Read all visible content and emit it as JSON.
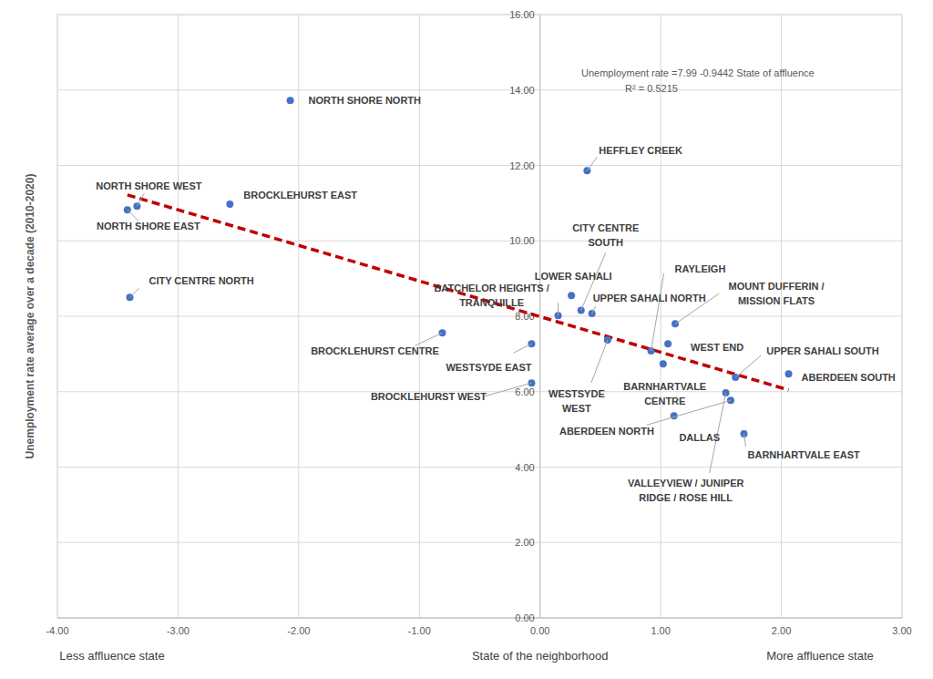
{
  "chart_data": {
    "type": "scatter",
    "y_label": "Unemployment rate average over a decade (2010-2020)",
    "x_label": "State of the neighborhood",
    "x_label_left": "Less affluence state",
    "x_label_right": "More affluence state",
    "annotations": [
      "Unemployment rate =7.99 -0.9442 State of affluence",
      "R² = 0.5215"
    ],
    "labels": [
      "NORTH SHORE NORTH",
      "HEFFLEY CREEK",
      "NORTH SHORE WEST",
      "NORTH SHORE EAST",
      "BROCKLEHURST EAST",
      "CITY CENTRE NORTH",
      "BROCKLEHURST CENTRE",
      "WESTSYDE EAST",
      "BROCKLEHURST WEST",
      "BATCHELOR HEIGHTS / TRANQUILLE",
      "LOWER SAHALI",
      "CITY CENTRE SOUTH",
      "UPPER SAHALI NORTH",
      "WESTSYDE WEST",
      "RAYLEIGH",
      "WEST END",
      "MOUNT DUFFERIN / MISSION FLATS",
      "BARNHARTVALE CENTRE",
      "UPPER SAHALI SOUTH",
      "ABERDEEN SOUTH",
      "VALLEYVIEW / JUNIPER RIDGE / ROSE HILL",
      "ABERDEEN NORTH",
      "DALLAS",
      "BARNHARTVALE EAST"
    ],
    "x": [
      -2.07,
      0.39,
      -3.34,
      -3.42,
      -2.57,
      -3.4,
      -0.81,
      -0.07,
      -0.07,
      0.15,
      0.26,
      0.34,
      0.43,
      0.56,
      0.92,
      1.06,
      1.12,
      1.02,
      1.62,
      2.06,
      1.54,
      1.58,
      1.11,
      1.69
    ],
    "values": [
      13.72,
      11.86,
      10.92,
      10.82,
      10.97,
      8.5,
      7.56,
      7.27,
      6.23,
      8.02,
      8.55,
      8.16,
      8.07,
      7.37,
      7.08,
      7.27,
      7.8,
      6.74,
      6.38,
      6.47,
      5.97,
      5.77,
      5.36,
      4.88
    ],
    "color": "#4472c4",
    "marker": "circle",
    "trendline": {
      "intercept": 7.99,
      "slope": -0.9442,
      "color": "#c00000",
      "line_style": "dashed"
    },
    "xlim": [
      -4,
      3
    ],
    "ylim": [
      0,
      16
    ],
    "xticks": [
      {
        "value": -4,
        "label": "-4.00"
      },
      {
        "value": -3,
        "label": "-3.00"
      },
      {
        "value": -2,
        "label": "-2.00"
      },
      {
        "value": -1,
        "label": "-1.00"
      },
      {
        "value": 0,
        "label": "0.00"
      },
      {
        "value": 1,
        "label": "1.00"
      },
      {
        "value": 2,
        "label": "2.00"
      },
      {
        "value": 3,
        "label": "3.00"
      }
    ],
    "yticks": [
      {
        "value": 0,
        "label": "0.00"
      },
      {
        "value": 2,
        "label": "2.00"
      },
      {
        "value": 4,
        "label": "4.00"
      },
      {
        "value": 6,
        "label": "6.00"
      },
      {
        "value": 8,
        "label": "8.00"
      },
      {
        "value": 10,
        "label": "10.00"
      },
      {
        "value": 12,
        "label": "12.00"
      },
      {
        "value": 14,
        "label": "14.00"
      },
      {
        "value": 16,
        "label": "16.00"
      }
    ],
    "grid": true
  }
}
